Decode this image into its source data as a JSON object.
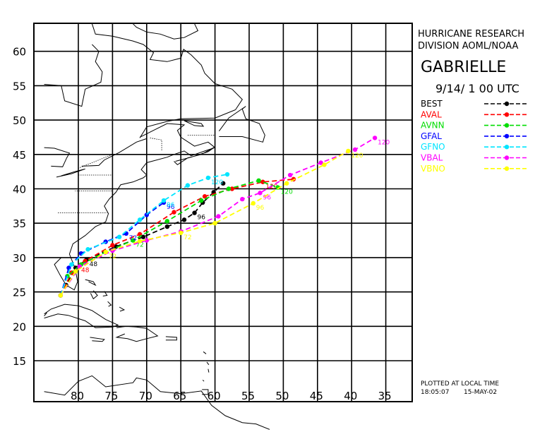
{
  "header": {
    "org_line1": "HURRICANE RESEARCH",
    "org_line2": "DIVISION AOML/NOAA",
    "storm_name": "GABRIELLE",
    "datetime": "9/14/ 1 00 UTC"
  },
  "legend": [
    {
      "name": "BEST",
      "color": "#000000"
    },
    {
      "name": "AVAL",
      "color": "#ff0000"
    },
    {
      "name": "AVNN",
      "color": "#00dd00"
    },
    {
      "name": "GFAL",
      "color": "#0000ff"
    },
    {
      "name": "GFNO",
      "color": "#00e5ff"
    },
    {
      "name": "VBAL",
      "color": "#ff00ff"
    },
    {
      "name": "VBNO",
      "color": "#ffff00"
    }
  ],
  "footer": {
    "plotted_note": "PLOTTED AT LOCAL TIME",
    "time": "18:05:07",
    "date": "15-MAY-02"
  },
  "chart_data": {
    "type": "map",
    "lat_ticks": [
      15,
      20,
      25,
      30,
      35,
      40,
      45,
      50,
      55,
      60
    ],
    "lon_ticks": [
      80,
      75,
      70,
      65,
      60,
      55,
      50,
      45,
      40,
      35
    ],
    "lon_range_west": [
      85,
      32
    ],
    "lat_range": [
      10,
      64
    ],
    "grid": true,
    "tracks": [
      {
        "name": "BEST",
        "color": "#000000",
        "points": [
          [
            -82.6,
            24.5
          ],
          [
            -81.8,
            26.0
          ],
          [
            -80.4,
            28.5
          ],
          [
            -78.8,
            29.7
          ],
          [
            -74.5,
            31.6
          ],
          [
            -70.5,
            33.0
          ],
          [
            -67.0,
            34.5
          ],
          [
            -64.5,
            35.5
          ],
          [
            -63.0,
            36.5
          ],
          [
            -61.8,
            38.0
          ],
          [
            -60.2,
            39.5
          ],
          [
            -58.8,
            40.8
          ]
        ],
        "labels": [
          {
            "text": "48",
            "lon": -78.8,
            "lat": 29.7
          },
          {
            "text": "96",
            "lon": -63.0,
            "lat": 36.5
          }
        ]
      },
      {
        "name": "AVAL",
        "color": "#ff0000",
        "points": [
          [
            -82.6,
            24.5
          ],
          [
            -81.0,
            27.8
          ],
          [
            -79.0,
            29.5
          ],
          [
            -75.0,
            31.8
          ],
          [
            -71.0,
            33.4
          ],
          [
            -66.0,
            36.6
          ],
          [
            -61.5,
            38.9
          ],
          [
            -57.5,
            40.0
          ],
          [
            -53.0,
            41.0
          ],
          [
            -48.5,
            41.4
          ]
        ],
        "labels": [
          {
            "text": "48",
            "lon": -80.0,
            "lat": 28.8
          },
          {
            "text": "120",
            "lon": -53.0,
            "lat": 41.0
          }
        ]
      },
      {
        "name": "AVNN",
        "color": "#00dd00",
        "points": [
          [
            -82.6,
            24.5
          ],
          [
            -81.6,
            27.3
          ],
          [
            -79.6,
            29.0
          ],
          [
            -76.0,
            30.8
          ],
          [
            -72.0,
            32.5
          ],
          [
            -67.0,
            35.3
          ],
          [
            -62.0,
            38.3
          ],
          [
            -58.0,
            40.0
          ],
          [
            -53.6,
            41.2
          ],
          [
            -50.8,
            40.2
          ]
        ],
        "labels": [
          {
            "text": "72",
            "lon": -72.0,
            "lat": 32.5
          },
          {
            "text": "120",
            "lon": -50.8,
            "lat": 40.2
          }
        ]
      },
      {
        "name": "GFAL",
        "color": "#0000ff",
        "points": [
          [
            -82.6,
            24.5
          ],
          [
            -81.4,
            28.5
          ],
          [
            -79.6,
            30.6
          ],
          [
            -76.0,
            32.3
          ],
          [
            -73.0,
            33.5
          ],
          [
            -70.0,
            36.2
          ],
          [
            -67.5,
            38.0
          ]
        ],
        "labels": [
          {
            "text": "72",
            "lon": -73.0,
            "lat": 33.5
          },
          {
            "text": "96",
            "lon": -67.5,
            "lat": 38.0
          }
        ]
      },
      {
        "name": "GFNO",
        "color": "#00e5ff",
        "points": [
          [
            -82.6,
            24.5
          ],
          [
            -81.0,
            29.0
          ],
          [
            -78.6,
            31.2
          ],
          [
            -74.0,
            33.0
          ],
          [
            -71.0,
            35.5
          ],
          [
            -67.5,
            38.3
          ],
          [
            -64.0,
            40.5
          ],
          [
            -61.0,
            41.6
          ],
          [
            -58.2,
            42.1
          ]
        ],
        "labels": [
          {
            "text": "96",
            "lon": -67.5,
            "lat": 38.3
          },
          {
            "text": "120",
            "lon": -61.0,
            "lat": 41.6
          }
        ]
      },
      {
        "name": "VBAL",
        "color": "#ff00ff",
        "points": [
          [
            -82.6,
            24.5
          ],
          [
            -79.8,
            28.7
          ],
          [
            -75.0,
            31.0
          ],
          [
            -70.0,
            32.5
          ],
          [
            -65.0,
            33.8
          ],
          [
            -59.5,
            36.0
          ],
          [
            -56.0,
            38.5
          ],
          [
            -53.4,
            39.4
          ],
          [
            -49.0,
            42.0
          ],
          [
            -44.5,
            43.8
          ],
          [
            -39.5,
            45.7
          ],
          [
            -36.6,
            47.4
          ]
        ],
        "labels": [
          {
            "text": "96",
            "lon": -53.4,
            "lat": 39.4
          },
          {
            "text": "120",
            "lon": -36.6,
            "lat": 47.4
          }
        ]
      },
      {
        "name": "VBNO",
        "color": "#ffff00",
        "points": [
          [
            -82.6,
            24.5
          ],
          [
            -80.4,
            28.0
          ],
          [
            -76.0,
            30.8
          ],
          [
            -71.0,
            32.4
          ],
          [
            -65.0,
            33.6
          ],
          [
            -60.0,
            35.0
          ],
          [
            -54.4,
            37.9
          ],
          [
            -49.5,
            40.8
          ],
          [
            -44.0,
            43.5
          ],
          [
            -40.5,
            45.5
          ]
        ],
        "labels": [
          {
            "text": "72",
            "lon": -76.0,
            "lat": 30.8
          },
          {
            "text": "72",
            "lon": -65.0,
            "lat": 33.6
          },
          {
            "text": "96",
            "lon": -54.4,
            "lat": 37.9
          },
          {
            "text": "120",
            "lon": -40.5,
            "lat": 45.5
          }
        ]
      }
    ]
  }
}
